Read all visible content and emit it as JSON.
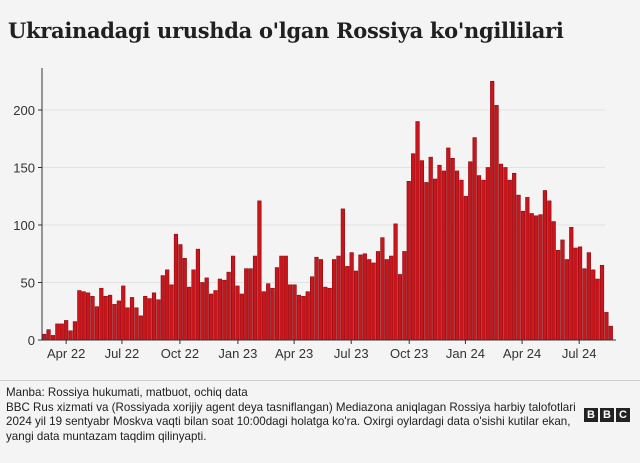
{
  "title": "Ukrainadagi urushda o'lgan Rossiya ko'ngillilari",
  "chart_data": {
    "type": "bar",
    "title": "Ukrainadagi urushda o'lgan Rossiya ko'ngillilari",
    "xlabel": "",
    "ylabel": "",
    "ylim": [
      0,
      240
    ],
    "yticks": [
      0,
      50,
      100,
      150,
      200
    ],
    "grid": true,
    "color": "#c8161d",
    "values": [
      5,
      9,
      4,
      14,
      14,
      17,
      8,
      16,
      43,
      42,
      41,
      38,
      29,
      45,
      38,
      39,
      31,
      34,
      47,
      28,
      37,
      28,
      21,
      38,
      36,
      41,
      35,
      56,
      61,
      48,
      92,
      83,
      71,
      46,
      61,
      79,
      50,
      54,
      40,
      43,
      53,
      52,
      59,
      73,
      47,
      40,
      62,
      62,
      73,
      121,
      42,
      49,
      45,
      63,
      73,
      73,
      48,
      48,
      39,
      38,
      42,
      55,
      72,
      70,
      46,
      45,
      70,
      73,
      114,
      64,
      76,
      60,
      74,
      75,
      70,
      67,
      77,
      89,
      70,
      73,
      101,
      57,
      77,
      138,
      162,
      190,
      156,
      137,
      159,
      140,
      152,
      147,
      167,
      158,
      147,
      139,
      125,
      155,
      176,
      143,
      139,
      150,
      225,
      204,
      153,
      150,
      139,
      145,
      126,
      112,
      124,
      110,
      108,
      109,
      130,
      121,
      103,
      78,
      87,
      70,
      98,
      80,
      81,
      62,
      76,
      61,
      53,
      65,
      24,
      12
    ],
    "xticks": [
      {
        "label": "Apr 22",
        "week": 5.5
      },
      {
        "label": "Jul 22",
        "week": 18.2
      },
      {
        "label": "Oct 22",
        "week": 31.4
      },
      {
        "label": "Jan 23",
        "week": 44.6
      },
      {
        "label": "Apr 23",
        "week": 57.4
      },
      {
        "label": "Jul 23",
        "week": 70.4
      },
      {
        "label": "Oct 23",
        "week": 83.6
      },
      {
        "label": "Jan 24",
        "week": 96.4
      },
      {
        "label": "Apr 24",
        "week": 109.3
      },
      {
        "label": "Jul 24",
        "week": 122.3
      }
    ]
  },
  "footer": {
    "source": "Manba: Rossiya hukumati, matbuot, ochiq data",
    "note": "BBC Rus xizmati va (Rossiyada xorijiy agent deya tasniflangan) Mediazona aniqlagan Rossiya harbiy talofotlari 2024 yil 19 sentyabr Moskva vaqti bilan soat 10:00dagi holatga ko'ra. Oxirgi oylardagi data o'sishi kutilar ekan, yangi data muntazam taqdim qilinyapti.",
    "logo": [
      "B",
      "B",
      "C"
    ]
  }
}
